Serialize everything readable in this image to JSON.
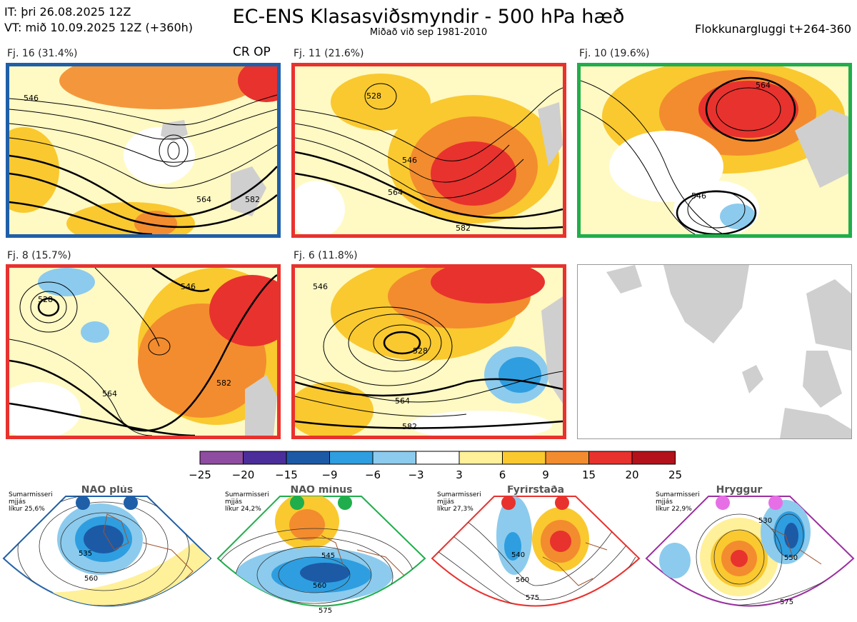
{
  "header": {
    "init_time": "IT: þri 26.08.2025 12Z",
    "valid_time": "VT: mið 10.09.2025 12Z  (+360h)",
    "title": "EC-ENS Klasasviðsmyndir - 500 hPa hæð",
    "subtitle": "Miðað við sep 1981-2010",
    "window": "Flokkunargluggi t+264-360"
  },
  "clusters": [
    {
      "label": "Fj. 16 (31.4%)",
      "extra": "CR OP",
      "border": "#1f5fa8",
      "contours": [
        "546",
        "564",
        "582"
      ]
    },
    {
      "label": "Fj. 11 (21.6%)",
      "extra": "",
      "border": "#e8322e",
      "contours": [
        "528",
        "546",
        "564",
        "582"
      ]
    },
    {
      "label": "Fj. 10 (19.6%)",
      "extra": "",
      "border": "#1fae4b",
      "contours": [
        "546",
        "564"
      ]
    },
    {
      "label": "Fj. 8 (15.7%)",
      "extra": "",
      "border": "#e8322e",
      "contours": [
        "528",
        "546",
        "564",
        "582"
      ]
    },
    {
      "label": "Fj. 6 (11.8%)",
      "extra": "",
      "border": "#e8322e",
      "contours": [
        "546",
        "528",
        "564",
        "582"
      ]
    }
  ],
  "colorbar": {
    "ticks": [
      "−25",
      "−20",
      "−15",
      "−9",
      "−6",
      "−3",
      "3",
      "6",
      "9",
      "15",
      "20",
      "25"
    ],
    "colors": [
      "#8e4da0",
      "#4b2e9a",
      "#1c5aa6",
      "#2e9ee0",
      "#8ccbed",
      "#ffffff",
      "#fff09a",
      "#f9c92f",
      "#f38c2e",
      "#e8322e",
      "#b3121b"
    ]
  },
  "regimes": [
    {
      "title": "NAO plús",
      "note": [
        "Sumarmisseri",
        "mjjás",
        "líkur 25,6%"
      ],
      "color": "#1f5fa8",
      "contours": [
        "535",
        "560"
      ]
    },
    {
      "title": "NAO mínus",
      "note": [
        "Sumarmisseri",
        "mjjás",
        "líkur 24,2%"
      ],
      "color": "#1fae4b",
      "contours": [
        "545",
        "560",
        "575"
      ]
    },
    {
      "title": "Fyrirstaða",
      "note": [
        "Sumarmisseri",
        "mjjás",
        "líkur 27,3%"
      ],
      "color": "#e8322e",
      "contours": [
        "540",
        "560",
        "575"
      ]
    },
    {
      "title": "Hryggur",
      "note": [
        "Sumarmisseri",
        "mjjás",
        "líkur 22,9%"
      ],
      "color": "#9b30a0",
      "contours": [
        "530",
        "550",
        "575"
      ]
    }
  ],
  "chart_data": {
    "type": "heatmap",
    "title": "EC-ENS Klasasviðsmyndir - 500 hPa hæð",
    "subtitle": "Miðað við sep 1981-2010",
    "colorbar_ticks": [
      -25,
      -20,
      -15,
      -9,
      -6,
      -3,
      3,
      6,
      9,
      15,
      20,
      25
    ],
    "clusters": [
      {
        "name": "Fj. 16",
        "percent": 31.4
      },
      {
        "name": "Fj. 11",
        "percent": 21.6
      },
      {
        "name": "Fj. 10",
        "percent": 19.6
      },
      {
        "name": "Fj. 8",
        "percent": 15.7
      },
      {
        "name": "Fj. 6",
        "percent": 11.8
      }
    ],
    "regimes": [
      {
        "name": "NAO plús",
        "probability": 25.6
      },
      {
        "name": "NAO mínus",
        "probability": 24.2
      },
      {
        "name": "Fyrirstaða",
        "probability": 27.3
      },
      {
        "name": "Hryggur",
        "probability": 22.9
      }
    ]
  }
}
